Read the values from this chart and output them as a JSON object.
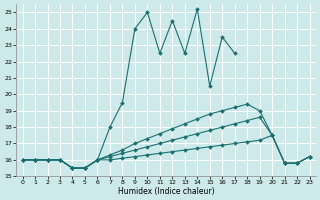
{
  "xlabel": "Humidex (Indice chaleur)",
  "ylabel": "",
  "background_color": "#cde9e9",
  "grid_color": "#b0d8d8",
  "line_color": "#1a7070",
  "xlim": [
    -0.5,
    23.5
  ],
  "ylim": [
    15,
    25.5
  ],
  "yticks": [
    15,
    16,
    17,
    18,
    19,
    20,
    21,
    22,
    23,
    24,
    25
  ],
  "xticks": [
    0,
    1,
    2,
    3,
    4,
    5,
    6,
    7,
    8,
    9,
    10,
    11,
    12,
    13,
    14,
    15,
    16,
    17,
    18,
    19,
    20,
    21,
    22,
    23
  ],
  "series": [
    {
      "x": [
        0,
        1,
        2,
        3,
        4,
        5,
        6,
        7,
        8,
        9,
        10,
        11,
        12,
        13,
        14,
        15,
        16,
        17,
        18,
        19,
        20,
        21,
        22,
        23
      ],
      "y": [
        16,
        16,
        16,
        16,
        15.5,
        15.5,
        16,
        16.3,
        16.6,
        17.0,
        17.3,
        17.6,
        17.9,
        18.2,
        18.5,
        18.8,
        19.0,
        19.2,
        19.4,
        19.0,
        17.5,
        15.8,
        15.8,
        16.2
      ]
    },
    {
      "x": [
        0,
        1,
        2,
        3,
        4,
        5,
        6,
        7,
        8,
        9,
        10,
        11,
        12,
        13,
        14,
        15,
        16,
        17,
        18,
        19,
        20,
        21,
        22,
        23
      ],
      "y": [
        16,
        16,
        16,
        16,
        15.5,
        15.5,
        16,
        16.2,
        16.4,
        16.6,
        16.8,
        17.0,
        17.2,
        17.4,
        17.6,
        17.8,
        18.0,
        18.2,
        18.4,
        18.6,
        17.5,
        15.8,
        15.8,
        16.2
      ]
    },
    {
      "x": [
        0,
        1,
        2,
        3,
        4,
        5,
        6,
        7,
        8,
        9,
        10,
        11,
        12,
        13,
        14,
        15,
        16,
        17,
        18,
        19,
        20,
        21,
        22,
        23
      ],
      "y": [
        16,
        16,
        16,
        16,
        15.5,
        15.5,
        16,
        16.0,
        16.1,
        16.2,
        16.3,
        16.4,
        16.5,
        16.6,
        16.7,
        16.8,
        16.9,
        17.0,
        17.1,
        17.2,
        17.5,
        15.8,
        15.8,
        16.2
      ]
    },
    {
      "x": [
        0,
        1,
        2,
        3,
        4,
        5,
        6,
        7,
        8,
        9,
        10,
        11,
        12,
        13,
        14,
        15,
        16,
        17,
        18,
        19,
        20,
        21,
        22,
        23
      ],
      "y": [
        16,
        16,
        16,
        16,
        15.5,
        15.5,
        16,
        18,
        19.5,
        24,
        25,
        22.5,
        24.5,
        22.5,
        25.2,
        20.5,
        23.5,
        22.5,
        null,
        null,
        null,
        null,
        null,
        null
      ]
    }
  ],
  "marker": "D",
  "markersize": 2,
  "linewidth": 0.8
}
